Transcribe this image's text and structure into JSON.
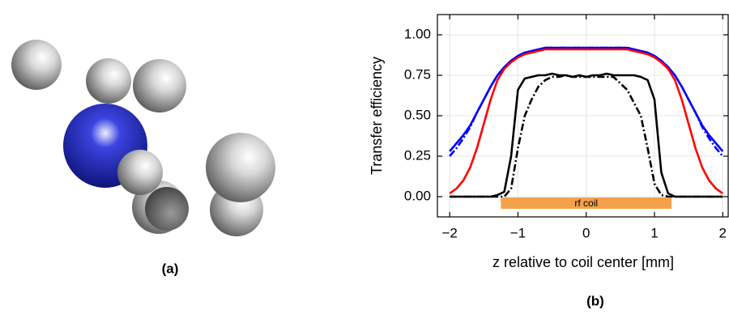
{
  "chart_data": {
    "type": "line",
    "panel_labels": [
      "(a)",
      "(b)"
    ],
    "xlabel": "z relative to coil center [mm]",
    "ylabel": "Transfer efficiency",
    "x": [
      -2.0,
      -1.9,
      -1.8,
      -1.7,
      -1.6,
      -1.5,
      -1.4,
      -1.3,
      -1.2,
      -1.1,
      -1.0,
      -0.9,
      -0.8,
      -0.7,
      -0.6,
      -0.5,
      -0.4,
      -0.3,
      -0.2,
      -0.1,
      0.0,
      0.1,
      0.2,
      0.3,
      0.4,
      0.5,
      0.6,
      0.7,
      0.8,
      0.9,
      1.0,
      1.1,
      1.2,
      1.3,
      1.4,
      1.5,
      1.6,
      1.7,
      1.8,
      1.9,
      2.0
    ],
    "series": [
      {
        "color": "#0000ff",
        "style": "solid",
        "values": [
          0.28,
          0.33,
          0.38,
          0.44,
          0.52,
          0.6,
          0.68,
          0.75,
          0.8,
          0.84,
          0.87,
          0.89,
          0.9,
          0.91,
          0.92,
          0.92,
          0.92,
          0.92,
          0.92,
          0.92,
          0.92,
          0.92,
          0.92,
          0.92,
          0.92,
          0.92,
          0.92,
          0.91,
          0.9,
          0.89,
          0.87,
          0.84,
          0.8,
          0.75,
          0.68,
          0.6,
          0.52,
          0.44,
          0.38,
          0.33,
          0.28
        ]
      },
      {
        "color": "#0000ff",
        "style": "dashdot",
        "values": [
          0.25,
          0.3,
          0.36,
          0.43,
          0.52,
          0.6,
          0.68,
          0.75,
          0.8,
          0.84,
          0.87,
          0.89,
          0.9,
          0.91,
          0.92,
          0.92,
          0.92,
          0.92,
          0.92,
          0.92,
          0.92,
          0.92,
          0.92,
          0.92,
          0.92,
          0.92,
          0.92,
          0.91,
          0.9,
          0.89,
          0.87,
          0.84,
          0.8,
          0.75,
          0.68,
          0.6,
          0.52,
          0.43,
          0.36,
          0.3,
          0.25
        ]
      },
      {
        "color": "#ff0000",
        "style": "solid",
        "values": [
          0.02,
          0.05,
          0.1,
          0.18,
          0.3,
          0.45,
          0.6,
          0.72,
          0.79,
          0.83,
          0.86,
          0.88,
          0.89,
          0.9,
          0.91,
          0.91,
          0.91,
          0.91,
          0.91,
          0.91,
          0.91,
          0.91,
          0.91,
          0.91,
          0.91,
          0.91,
          0.91,
          0.9,
          0.89,
          0.88,
          0.86,
          0.83,
          0.79,
          0.72,
          0.6,
          0.45,
          0.3,
          0.18,
          0.1,
          0.05,
          0.02
        ]
      },
      {
        "color": "#000000",
        "style": "solid",
        "values": [
          0,
          0,
          0,
          0,
          0,
          0,
          0,
          0.01,
          0.03,
          0.25,
          0.66,
          0.73,
          0.74,
          0.75,
          0.75,
          0.76,
          0.75,
          0.75,
          0.74,
          0.75,
          0.74,
          0.75,
          0.75,
          0.76,
          0.75,
          0.75,
          0.75,
          0.75,
          0.74,
          0.72,
          0.6,
          0.15,
          0.02,
          0,
          0,
          0,
          0,
          0,
          0,
          0,
          0
        ]
      },
      {
        "color": "#000000",
        "style": "dashdot",
        "values": [
          0,
          0,
          0,
          0,
          0,
          0,
          0,
          0,
          0,
          0.05,
          0.3,
          0.5,
          0.6,
          0.68,
          0.72,
          0.74,
          0.74,
          0.75,
          0.74,
          0.74,
          0.74,
          0.74,
          0.74,
          0.74,
          0.74,
          0.7,
          0.66,
          0.58,
          0.5,
          0.3,
          0.08,
          0.01,
          0,
          0,
          0,
          0,
          0,
          0,
          0,
          0,
          0
        ]
      }
    ],
    "coil": {
      "label": "rf coil",
      "range": [
        -1.25,
        1.25
      ],
      "y": -0.04,
      "color": "#f5a04a"
    },
    "xlim": [
      -2.18,
      2.08
    ],
    "ylim": [
      -0.125,
      1.125
    ],
    "xticks": [
      {
        "value": -2,
        "label": "−2"
      },
      {
        "value": -1,
        "label": "−1"
      },
      0,
      1,
      2
    ],
    "yticks": [
      {
        "value": 0,
        "label": "0.00"
      },
      {
        "value": 0.25,
        "label": "0.25"
      },
      {
        "value": 0.5,
        "label": "0.50"
      },
      {
        "value": 0.75,
        "label": "0.75"
      },
      {
        "value": 1,
        "label": "1.00"
      }
    ],
    "grid": true
  }
}
